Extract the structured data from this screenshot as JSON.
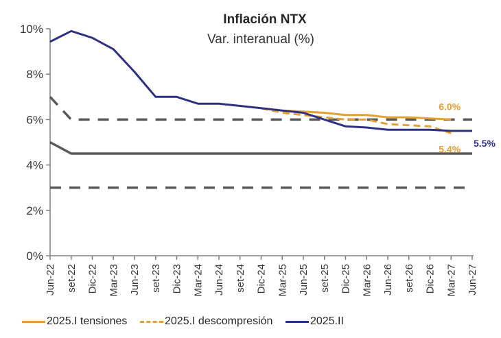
{
  "chart_data": {
    "type": "line",
    "title": "Inflación NTX",
    "subtitle": "Var. interanual (%)",
    "xlabel": "",
    "ylabel": "",
    "ylim": [
      0,
      10
    ],
    "yticks": [
      0,
      2,
      4,
      6,
      8,
      10
    ],
    "ytick_labels": [
      "0%",
      "2%",
      "4%",
      "6%",
      "8%",
      "10%"
    ],
    "grid": false,
    "legend_position": "bottom",
    "categories": [
      "Jun-22",
      "set-22",
      "Dic-22",
      "Mar-23",
      "Jun-23",
      "set-23",
      "Dic-23",
      "Mar-24",
      "Jun-24",
      "set-24",
      "Dic-24",
      "Mar-25",
      "Jun-25",
      "set-25",
      "Dic-25",
      "Mar-26",
      "Jun-26",
      "set-26",
      "Dic-26",
      "Mar-27",
      "Jun-27"
    ],
    "series": [
      {
        "name": "target-range-upper",
        "in_legend": false,
        "color": "#595959",
        "style": "dashed",
        "values": [
          7.0,
          6.0,
          6.0,
          6.0,
          6.0,
          6.0,
          6.0,
          6.0,
          6.0,
          6.0,
          6.0,
          6.0,
          6.0,
          6.0,
          6.0,
          6.0,
          6.0,
          6.0,
          6.0,
          6.0,
          6.0
        ]
      },
      {
        "name": "target-center",
        "in_legend": false,
        "color": "#595959",
        "style": "solid",
        "values": [
          5.0,
          4.5,
          4.5,
          4.5,
          4.5,
          4.5,
          4.5,
          4.5,
          4.5,
          4.5,
          4.5,
          4.5,
          4.5,
          4.5,
          4.5,
          4.5,
          4.5,
          4.5,
          4.5,
          4.5,
          4.5
        ]
      },
      {
        "name": "target-range-lower",
        "in_legend": false,
        "color": "#595959",
        "style": "dashed",
        "values": [
          3.0,
          3.0,
          3.0,
          3.0,
          3.0,
          3.0,
          3.0,
          3.0,
          3.0,
          3.0,
          3.0,
          3.0,
          3.0,
          3.0,
          3.0,
          3.0,
          3.0,
          3.0,
          3.0,
          3.0,
          3.0
        ]
      },
      {
        "name": "2025.I tensiones",
        "in_legend": true,
        "color": "#E4A035",
        "style": "solid",
        "values": [
          null,
          null,
          null,
          null,
          null,
          null,
          null,
          null,
          null,
          null,
          6.5,
          6.4,
          6.35,
          6.3,
          6.2,
          6.2,
          6.1,
          6.1,
          6.05,
          6.0,
          null
        ],
        "end_label": "6.0%"
      },
      {
        "name": "2025.I descompresión",
        "in_legend": true,
        "color": "#E4A035",
        "style": "dashed",
        "values": [
          null,
          null,
          null,
          null,
          null,
          null,
          null,
          null,
          null,
          null,
          6.5,
          6.3,
          6.2,
          6.1,
          6.0,
          6.0,
          5.8,
          5.75,
          5.7,
          5.4,
          null
        ],
        "end_label": "5.4%"
      },
      {
        "name": "2025.II",
        "in_legend": true,
        "color": "#2E3182",
        "style": "solid",
        "values": [
          9.43,
          9.9,
          9.6,
          9.1,
          8.1,
          7.0,
          7.0,
          6.7,
          6.7,
          6.6,
          6.5,
          6.4,
          6.3,
          6.0,
          5.7,
          5.65,
          5.55,
          5.55,
          5.55,
          5.5,
          5.5
        ],
        "end_label": "5.5%"
      }
    ]
  }
}
